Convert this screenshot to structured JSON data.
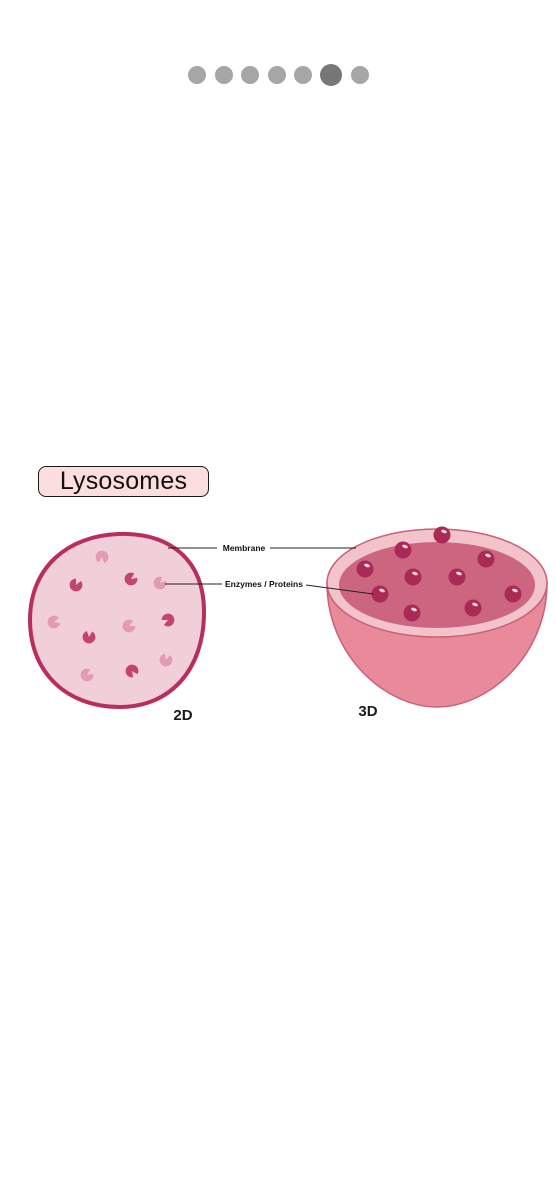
{
  "pager": {
    "total": 7,
    "active_index": 5,
    "dot_color": "#a6a6a6",
    "active_color": "#777777"
  },
  "slide": {
    "title": "Lysosomes",
    "labels": {
      "membrane": "Membrane",
      "enzymes": "Enzymes / Proteins",
      "view_2d": "2D",
      "view_3d": "3D"
    }
  },
  "colors": {
    "membrane": "#b82e5c",
    "interior_2d": "#f1cfd9",
    "enzyme_dark": "#c44470",
    "enzyme_light": "#e49ab2",
    "shell_outer": "#e98a9b",
    "shell_rim": "#f2c3ca",
    "shell_inner": "#cc6680",
    "sphere": "#a92a55"
  }
}
